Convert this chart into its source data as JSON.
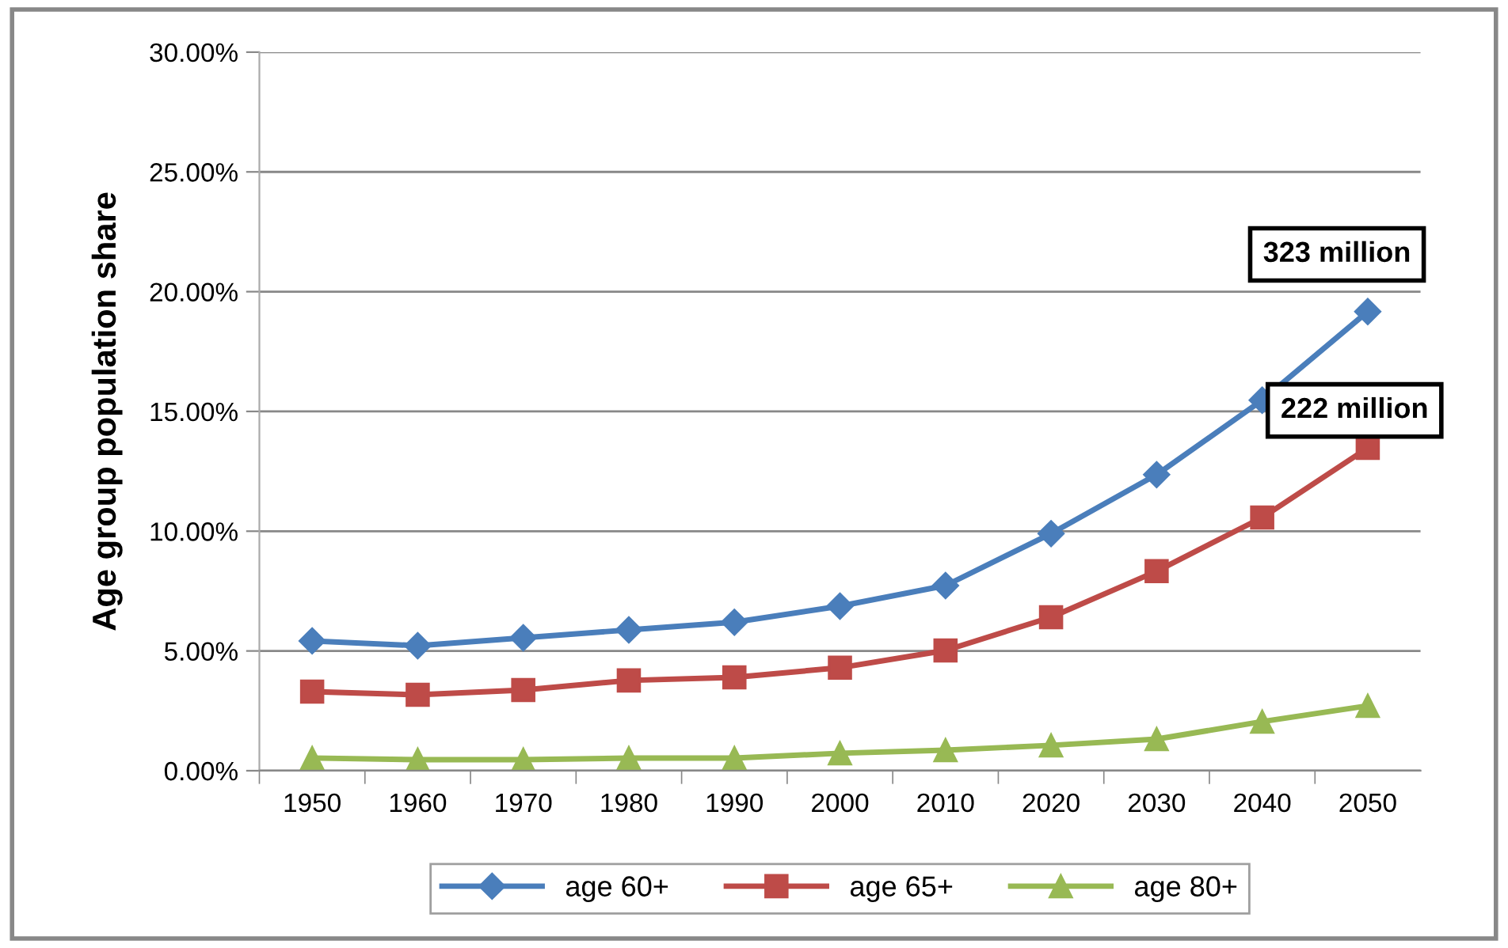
{
  "chart_data": {
    "type": "line",
    "ylabel": "Age group population share",
    "categories": [
      "1950",
      "1960",
      "1970",
      "1980",
      "1990",
      "2000",
      "2010",
      "2020",
      "2030",
      "2040",
      "2050"
    ],
    "series": [
      {
        "name": "age 60+",
        "color": "#4a7ebb",
        "marker": "diamond",
        "values": [
          5.42,
          5.22,
          5.55,
          5.88,
          6.2,
          6.87,
          7.73,
          9.9,
          12.36,
          15.47,
          19.17
        ]
      },
      {
        "name": "age 65+",
        "color": "#be4b48",
        "marker": "square",
        "values": [
          3.3,
          3.17,
          3.37,
          3.77,
          3.9,
          4.3,
          5.02,
          6.41,
          8.33,
          10.57,
          13.48
        ]
      },
      {
        "name": "age 80+",
        "color": "#98b954",
        "marker": "triangle",
        "values": [
          0.53,
          0.46,
          0.46,
          0.53,
          0.53,
          0.73,
          0.86,
          1.06,
          1.32,
          2.05,
          2.71
        ]
      }
    ],
    "ylim": [
      0,
      30
    ],
    "yticks": [
      {
        "value": 0,
        "label": "0.00%"
      },
      {
        "value": 5,
        "label": "5.00%"
      },
      {
        "value": 10,
        "label": "10.00%"
      },
      {
        "value": 15,
        "label": "15.00%"
      },
      {
        "value": 20,
        "label": "20.00%"
      },
      {
        "value": 25,
        "label": "25.00%"
      },
      {
        "value": 30,
        "label": "30.00%"
      }
    ],
    "annotations": [
      {
        "text": "323 million",
        "x": "2050",
        "y": 19.17
      },
      {
        "text": "222 million",
        "x": "2050",
        "y": 13.48
      }
    ],
    "grid": "y",
    "legend": "bottom"
  }
}
